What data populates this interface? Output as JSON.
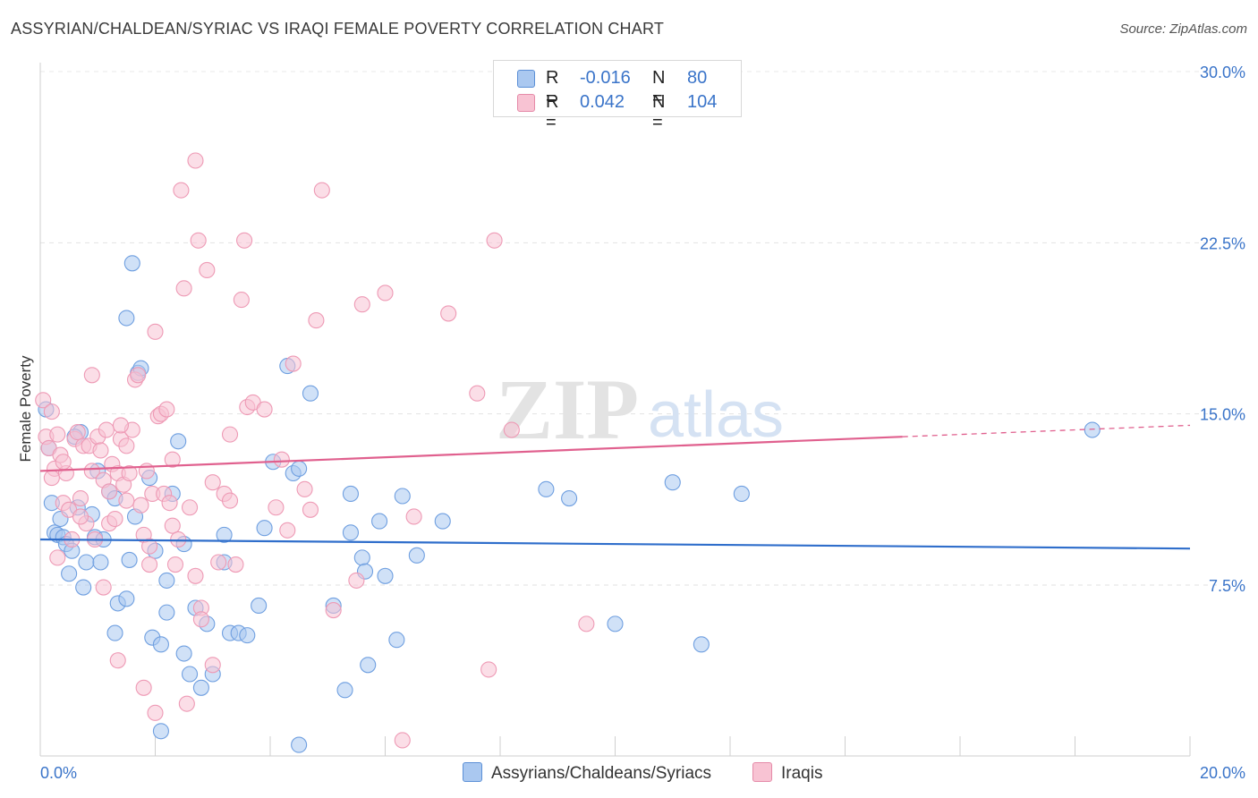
{
  "header": {
    "title": "ASSYRIAN/CHALDEAN/SYRIAC VS IRAQI FEMALE POVERTY CORRELATION CHART",
    "source": "Source: ZipAtlas.com"
  },
  "watermark": {
    "zip": "ZIP",
    "atlas": "atlas"
  },
  "legend": {
    "rows": [
      {
        "r_label": "R =",
        "r_value": "-0.016",
        "n_label": "N =",
        "n_value": "80",
        "color": "#aac8f0",
        "border": "#5b8fd6"
      },
      {
        "r_label": "R =",
        "r_value": "0.042",
        "n_label": "N =",
        "n_value": "104",
        "color": "#f8c3d3",
        "border": "#e58aa8"
      }
    ]
  },
  "bottom_legend": {
    "items": [
      {
        "label": "Assyrians/Chaldeans/Syriacs",
        "color": "#aac8f0",
        "border": "#5b8fd6"
      },
      {
        "label": "Iraqis",
        "color": "#f8c3d3",
        "border": "#e58aa8"
      }
    ]
  },
  "chart_data": {
    "type": "scatter",
    "title": "ASSYRIAN/CHALDEAN/SYRIAC VS IRAQI FEMALE POVERTY CORRELATION CHART",
    "xlabel": "",
    "ylabel": "Female Poverty",
    "xlim": [
      0,
      20
    ],
    "ylim": [
      0,
      31
    ],
    "x_tick_labels": [
      "0.0%",
      "20.0%"
    ],
    "y_ticks": [
      7.5,
      15.0,
      22.5,
      30.0
    ],
    "y_tick_labels": [
      "7.5%",
      "15.0%",
      "22.5%",
      "30.0%"
    ],
    "grid": true,
    "legend_position": "top-center",
    "series": [
      {
        "name": "Assyrians/Chaldeans/Syriacs",
        "color": "#6f9fe0",
        "fill": "#aac8f0",
        "trend": {
          "x0": 0,
          "y0": 9.5,
          "x1": 20,
          "y1": 9.1,
          "color": "#2f6ecb"
        },
        "points": [
          [
            0.1,
            15.2
          ],
          [
            0.15,
            13.5
          ],
          [
            0.2,
            11.1
          ],
          [
            0.25,
            9.8
          ],
          [
            0.3,
            9.7
          ],
          [
            0.35,
            10.4
          ],
          [
            0.4,
            9.6
          ],
          [
            0.45,
            9.3
          ],
          [
            0.5,
            8.0
          ],
          [
            0.55,
            9.0
          ],
          [
            0.65,
            10.9
          ],
          [
            0.7,
            14.2
          ],
          [
            0.75,
            7.4
          ],
          [
            0.8,
            8.5
          ],
          [
            0.9,
            10.6
          ],
          [
            0.95,
            9.6
          ],
          [
            1.05,
            8.5
          ],
          [
            1.1,
            9.5
          ],
          [
            1.2,
            11.6
          ],
          [
            1.3,
            11.3
          ],
          [
            1.3,
            5.4
          ],
          [
            1.35,
            6.7
          ],
          [
            1.5,
            19.2
          ],
          [
            1.5,
            6.9
          ],
          [
            1.55,
            8.6
          ],
          [
            1.6,
            21.6
          ],
          [
            1.65,
            10.5
          ],
          [
            1.7,
            16.8
          ],
          [
            1.75,
            17.0
          ],
          [
            1.9,
            12.2
          ],
          [
            1.95,
            5.2
          ],
          [
            2.1,
            4.9
          ],
          [
            2.1,
            1.1
          ],
          [
            2.2,
            6.3
          ],
          [
            2.2,
            7.7
          ],
          [
            2.3,
            11.5
          ],
          [
            2.4,
            13.8
          ],
          [
            2.5,
            9.3
          ],
          [
            2.5,
            4.5
          ],
          [
            2.6,
            3.6
          ],
          [
            2.7,
            6.5
          ],
          [
            2.8,
            3.0
          ],
          [
            2.9,
            5.8
          ],
          [
            3.0,
            3.6
          ],
          [
            3.2,
            8.5
          ],
          [
            3.2,
            9.7
          ],
          [
            3.3,
            5.4
          ],
          [
            3.45,
            5.4
          ],
          [
            3.6,
            5.3
          ],
          [
            3.8,
            6.6
          ],
          [
            3.9,
            10.0
          ],
          [
            4.05,
            12.9
          ],
          [
            4.3,
            17.1
          ],
          [
            4.4,
            12.4
          ],
          [
            4.5,
            12.6
          ],
          [
            4.5,
            0.5
          ],
          [
            4.7,
            15.9
          ],
          [
            5.1,
            6.6
          ],
          [
            5.3,
            2.9
          ],
          [
            5.4,
            11.5
          ],
          [
            5.4,
            9.8
          ],
          [
            5.6,
            8.7
          ],
          [
            5.65,
            8.1
          ],
          [
            5.7,
            4.0
          ],
          [
            5.9,
            10.3
          ],
          [
            6.0,
            7.9
          ],
          [
            6.2,
            5.1
          ],
          [
            6.3,
            11.4
          ],
          [
            6.55,
            8.8
          ],
          [
            7.0,
            10.3
          ],
          [
            8.8,
            11.7
          ],
          [
            9.2,
            11.3
          ],
          [
            10.0,
            5.8
          ],
          [
            11.0,
            12.0
          ],
          [
            11.5,
            4.9
          ],
          [
            12.2,
            11.5
          ],
          [
            18.3,
            14.3
          ],
          [
            0.6,
            14.0
          ],
          [
            1.0,
            12.5
          ],
          [
            2.0,
            9.0
          ]
        ]
      },
      {
        "name": "Iraqis",
        "color": "#ee9ab5",
        "fill": "#f8c3d3",
        "trend": {
          "x0": 0,
          "y0": 12.5,
          "x1": 15.0,
          "y1": 14.0,
          "x2": 20,
          "y2": 14.5,
          "color": "#e0608e"
        },
        "points": [
          [
            0.05,
            15.6
          ],
          [
            0.1,
            14.0
          ],
          [
            0.15,
            13.5
          ],
          [
            0.2,
            15.1
          ],
          [
            0.25,
            12.6
          ],
          [
            0.3,
            14.1
          ],
          [
            0.35,
            13.2
          ],
          [
            0.4,
            11.1
          ],
          [
            0.45,
            12.4
          ],
          [
            0.5,
            10.8
          ],
          [
            0.55,
            9.5
          ],
          [
            0.6,
            13.9
          ],
          [
            0.65,
            14.2
          ],
          [
            0.7,
            11.3
          ],
          [
            0.75,
            13.6
          ],
          [
            0.8,
            10.2
          ],
          [
            0.85,
            13.6
          ],
          [
            0.9,
            12.5
          ],
          [
            0.95,
            9.5
          ],
          [
            1.0,
            14.0
          ],
          [
            1.05,
            13.4
          ],
          [
            1.1,
            12.1
          ],
          [
            1.15,
            14.3
          ],
          [
            1.2,
            10.2
          ],
          [
            1.25,
            12.8
          ],
          [
            1.3,
            10.4
          ],
          [
            1.35,
            12.4
          ],
          [
            1.4,
            13.9
          ],
          [
            1.45,
            11.9
          ],
          [
            1.5,
            13.6
          ],
          [
            1.55,
            12.4
          ],
          [
            1.6,
            14.3
          ],
          [
            1.65,
            16.5
          ],
          [
            1.7,
            16.7
          ],
          [
            1.75,
            11.0
          ],
          [
            1.8,
            9.7
          ],
          [
            1.85,
            12.5
          ],
          [
            1.9,
            9.2
          ],
          [
            1.95,
            11.5
          ],
          [
            2.0,
            18.6
          ],
          [
            2.05,
            14.9
          ],
          [
            2.1,
            15.0
          ],
          [
            2.15,
            11.5
          ],
          [
            2.2,
            15.2
          ],
          [
            2.25,
            11.1
          ],
          [
            2.3,
            10.1
          ],
          [
            2.35,
            8.4
          ],
          [
            2.4,
            9.5
          ],
          [
            2.45,
            24.8
          ],
          [
            2.5,
            20.5
          ],
          [
            2.6,
            10.9
          ],
          [
            2.7,
            26.1
          ],
          [
            2.75,
            22.6
          ],
          [
            2.8,
            6.5
          ],
          [
            2.9,
            21.3
          ],
          [
            3.0,
            4.0
          ],
          [
            3.1,
            8.5
          ],
          [
            3.2,
            11.5
          ],
          [
            3.3,
            14.1
          ],
          [
            3.4,
            8.4
          ],
          [
            3.5,
            20.0
          ],
          [
            3.55,
            22.6
          ],
          [
            3.6,
            15.3
          ],
          [
            3.7,
            15.5
          ],
          [
            3.9,
            15.2
          ],
          [
            4.1,
            10.9
          ],
          [
            4.3,
            9.9
          ],
          [
            4.4,
            17.2
          ],
          [
            4.6,
            11.7
          ],
          [
            4.7,
            10.8
          ],
          [
            4.8,
            19.1
          ],
          [
            4.9,
            24.8
          ],
          [
            5.1,
            6.4
          ],
          [
            5.5,
            7.7
          ],
          [
            5.6,
            19.8
          ],
          [
            6.0,
            20.3
          ],
          [
            6.3,
            0.7
          ],
          [
            6.5,
            10.5
          ],
          [
            7.1,
            19.4
          ],
          [
            7.6,
            15.9
          ],
          [
            7.8,
            3.8
          ],
          [
            7.9,
            22.6
          ],
          [
            8.2,
            14.3
          ],
          [
            9.5,
            5.8
          ],
          [
            0.3,
            8.7
          ],
          [
            0.9,
            16.7
          ],
          [
            1.1,
            7.4
          ],
          [
            1.35,
            4.2
          ],
          [
            1.8,
            3.0
          ],
          [
            2.0,
            1.9
          ],
          [
            2.55,
            2.3
          ],
          [
            1.5,
            11.2
          ],
          [
            2.3,
            13.0
          ],
          [
            3.0,
            12.0
          ],
          [
            2.7,
            7.9
          ],
          [
            1.2,
            11.6
          ],
          [
            0.7,
            10.5
          ],
          [
            0.4,
            12.9
          ],
          [
            1.9,
            8.4
          ],
          [
            2.8,
            6.0
          ],
          [
            0.2,
            12.2
          ],
          [
            1.4,
            14.5
          ],
          [
            3.3,
            11.2
          ],
          [
            4.2,
            13.0
          ]
        ]
      }
    ]
  }
}
